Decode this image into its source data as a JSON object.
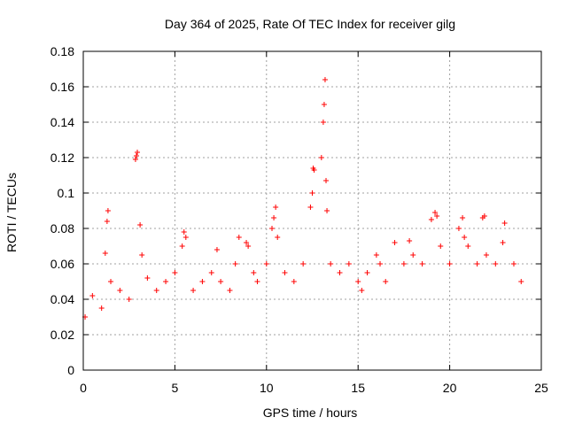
{
  "chart_data": {
    "type": "scatter",
    "title": "Day 364 of 2025, Rate Of TEC Index for receiver gilg",
    "xlabel": "GPS time / hours",
    "ylabel": "ROTI / TECUs",
    "xlim": [
      0,
      25
    ],
    "ylim": [
      0,
      0.18
    ],
    "xticks": [
      0,
      5,
      10,
      15,
      20,
      25
    ],
    "xtick_labels": [
      "0",
      "5",
      "10",
      "15",
      "20",
      "25"
    ],
    "yticks": [
      0,
      0.02,
      0.04,
      0.06,
      0.08,
      0.1,
      0.12,
      0.14,
      0.16,
      0.18
    ],
    "ytick_labels": [
      "0",
      "0.02",
      "0.04",
      "0.06",
      "0.08",
      "0.1",
      "0.12",
      "0.14",
      "0.16",
      "0.18"
    ],
    "grid": true,
    "marker": "plus",
    "color": "#ff0000",
    "series": [
      {
        "name": "ROTI",
        "x": [
          0.1,
          0.5,
          1.0,
          1.2,
          1.3,
          1.35,
          1.5,
          2.0,
          2.5,
          2.85,
          2.9,
          2.95,
          3.1,
          3.2,
          3.5,
          4.0,
          4.5,
          5.0,
          5.4,
          5.5,
          5.6,
          6.0,
          6.5,
          7.0,
          7.3,
          7.5,
          8.0,
          8.3,
          8.5,
          8.9,
          9.0,
          9.3,
          9.5,
          10.0,
          10.3,
          10.4,
          10.5,
          10.6,
          11.0,
          11.5,
          12.0,
          12.4,
          12.5,
          12.55,
          12.6,
          13.0,
          13.1,
          13.15,
          13.2,
          13.25,
          13.3,
          13.5,
          14.0,
          14.5,
          15.0,
          15.2,
          15.5,
          16.0,
          16.2,
          16.5,
          17.0,
          17.5,
          17.8,
          18.0,
          18.5,
          19.0,
          19.2,
          19.3,
          19.5,
          20.0,
          20.5,
          20.7,
          20.8,
          21.0,
          21.5,
          21.8,
          21.9,
          22.0,
          22.5,
          22.9,
          23.0,
          23.5,
          23.9
        ],
        "y": [
          0.03,
          0.042,
          0.035,
          0.066,
          0.084,
          0.09,
          0.05,
          0.045,
          0.04,
          0.119,
          0.121,
          0.123,
          0.082,
          0.065,
          0.052,
          0.045,
          0.05,
          0.055,
          0.07,
          0.078,
          0.075,
          0.045,
          0.05,
          0.055,
          0.068,
          0.05,
          0.045,
          0.06,
          0.075,
          0.072,
          0.07,
          0.055,
          0.05,
          0.06,
          0.08,
          0.086,
          0.092,
          0.075,
          0.055,
          0.05,
          0.06,
          0.092,
          0.1,
          0.114,
          0.113,
          0.12,
          0.14,
          0.15,
          0.164,
          0.107,
          0.09,
          0.06,
          0.055,
          0.06,
          0.05,
          0.045,
          0.055,
          0.065,
          0.06,
          0.05,
          0.072,
          0.06,
          0.073,
          0.065,
          0.06,
          0.085,
          0.089,
          0.087,
          0.07,
          0.06,
          0.08,
          0.086,
          0.075,
          0.07,
          0.06,
          0.086,
          0.087,
          0.065,
          0.06,
          0.072,
          0.083,
          0.06,
          0.05
        ]
      }
    ]
  }
}
